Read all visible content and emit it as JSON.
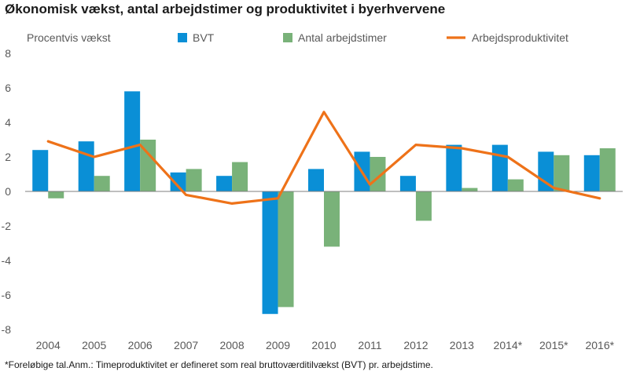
{
  "title": "Økonomisk vækst, antal arbejdstimer og produktivitet i byerhvervene",
  "footnote": "*Foreløbige tal.Anm.: Timeproduktivitet er defineret som real bruttoværditilvækst (BVT) pr. arbejdstime.",
  "chart_data": {
    "type": "bar",
    "ylabel": "Procentvis vækst",
    "ylim": [
      -8,
      8
    ],
    "yticks": [
      8,
      6,
      4,
      2,
      0,
      -2,
      -4,
      -6,
      -8
    ],
    "categories": [
      "2004",
      "2005",
      "2006",
      "2007",
      "2008",
      "2009",
      "2010",
      "2011",
      "2012",
      "2013",
      "2014*",
      "2015*",
      "2016*"
    ],
    "legend_position": "top",
    "grid": false,
    "series": [
      {
        "name": "BVT",
        "kind": "bar",
        "color": "#0a8fd6",
        "values": [
          2.4,
          2.9,
          5.8,
          1.1,
          0.9,
          -7.1,
          1.3,
          2.3,
          0.9,
          2.7,
          2.7,
          2.3,
          2.1
        ]
      },
      {
        "name": "Antal arbejdstimer",
        "kind": "bar",
        "color": "#79b279",
        "values": [
          -0.4,
          0.9,
          3.0,
          1.3,
          1.7,
          -6.7,
          -3.2,
          2.0,
          -1.7,
          0.2,
          0.7,
          2.1,
          2.5
        ]
      },
      {
        "name": "Arbejdsproduktivitet",
        "kind": "line",
        "color": "#ee7219",
        "values": [
          2.9,
          2.0,
          2.7,
          -0.2,
          -0.7,
          -0.4,
          4.6,
          0.4,
          2.7,
          2.5,
          2.0,
          0.2,
          -0.4
        ]
      }
    ]
  }
}
